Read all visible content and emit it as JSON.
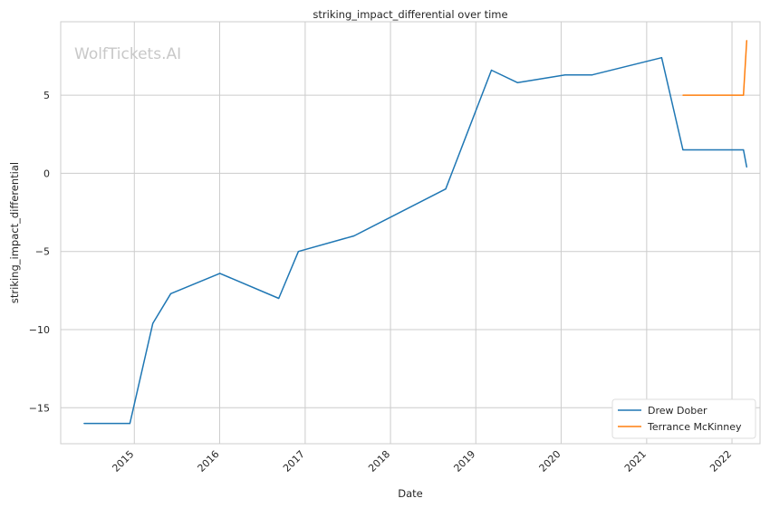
{
  "chart_data": {
    "type": "line",
    "title": "striking_impact_differential over time",
    "xlabel": "Date",
    "ylabel": "striking_impact_differential",
    "watermark": "WolfTickets.AI",
    "x_ticks": [
      "2015",
      "2016",
      "2017",
      "2018",
      "2019",
      "2020",
      "2021",
      "2022"
    ],
    "y_ticks": [
      -15,
      -10,
      -5,
      0,
      5
    ],
    "x_range": [
      "2014-02-20",
      "2022-05-01"
    ],
    "ylim": [
      -17.3,
      9.7
    ],
    "grid": true,
    "legend_position": "lower-right",
    "series": [
      {
        "name": "Drew Dober",
        "color": "#1f77b4",
        "points": [
          [
            "2014-05-31",
            -16.0
          ],
          [
            "2014-12-13",
            -16.0
          ],
          [
            "2015-03-21",
            -9.6
          ],
          [
            "2015-06-06",
            -7.7
          ],
          [
            "2016-01-02",
            -6.4
          ],
          [
            "2016-09-10",
            -8.0
          ],
          [
            "2016-12-03",
            -5.0
          ],
          [
            "2017-07-29",
            -4.0
          ],
          [
            "2018-08-25",
            -1.0
          ],
          [
            "2019-03-09",
            6.6
          ],
          [
            "2019-06-29",
            5.8
          ],
          [
            "2020-01-18",
            6.3
          ],
          [
            "2020-05-13",
            6.3
          ],
          [
            "2021-03-06",
            7.4
          ],
          [
            "2021-06-05",
            1.5
          ],
          [
            "2022-02-19",
            1.5
          ],
          [
            "2022-03-05",
            0.4
          ]
        ]
      },
      {
        "name": "Terrance McKinney",
        "color": "#ff7f0e",
        "points": [
          [
            "2021-06-05",
            5.0
          ],
          [
            "2022-02-19",
            5.0
          ],
          [
            "2022-03-05",
            8.5
          ]
        ]
      }
    ]
  }
}
